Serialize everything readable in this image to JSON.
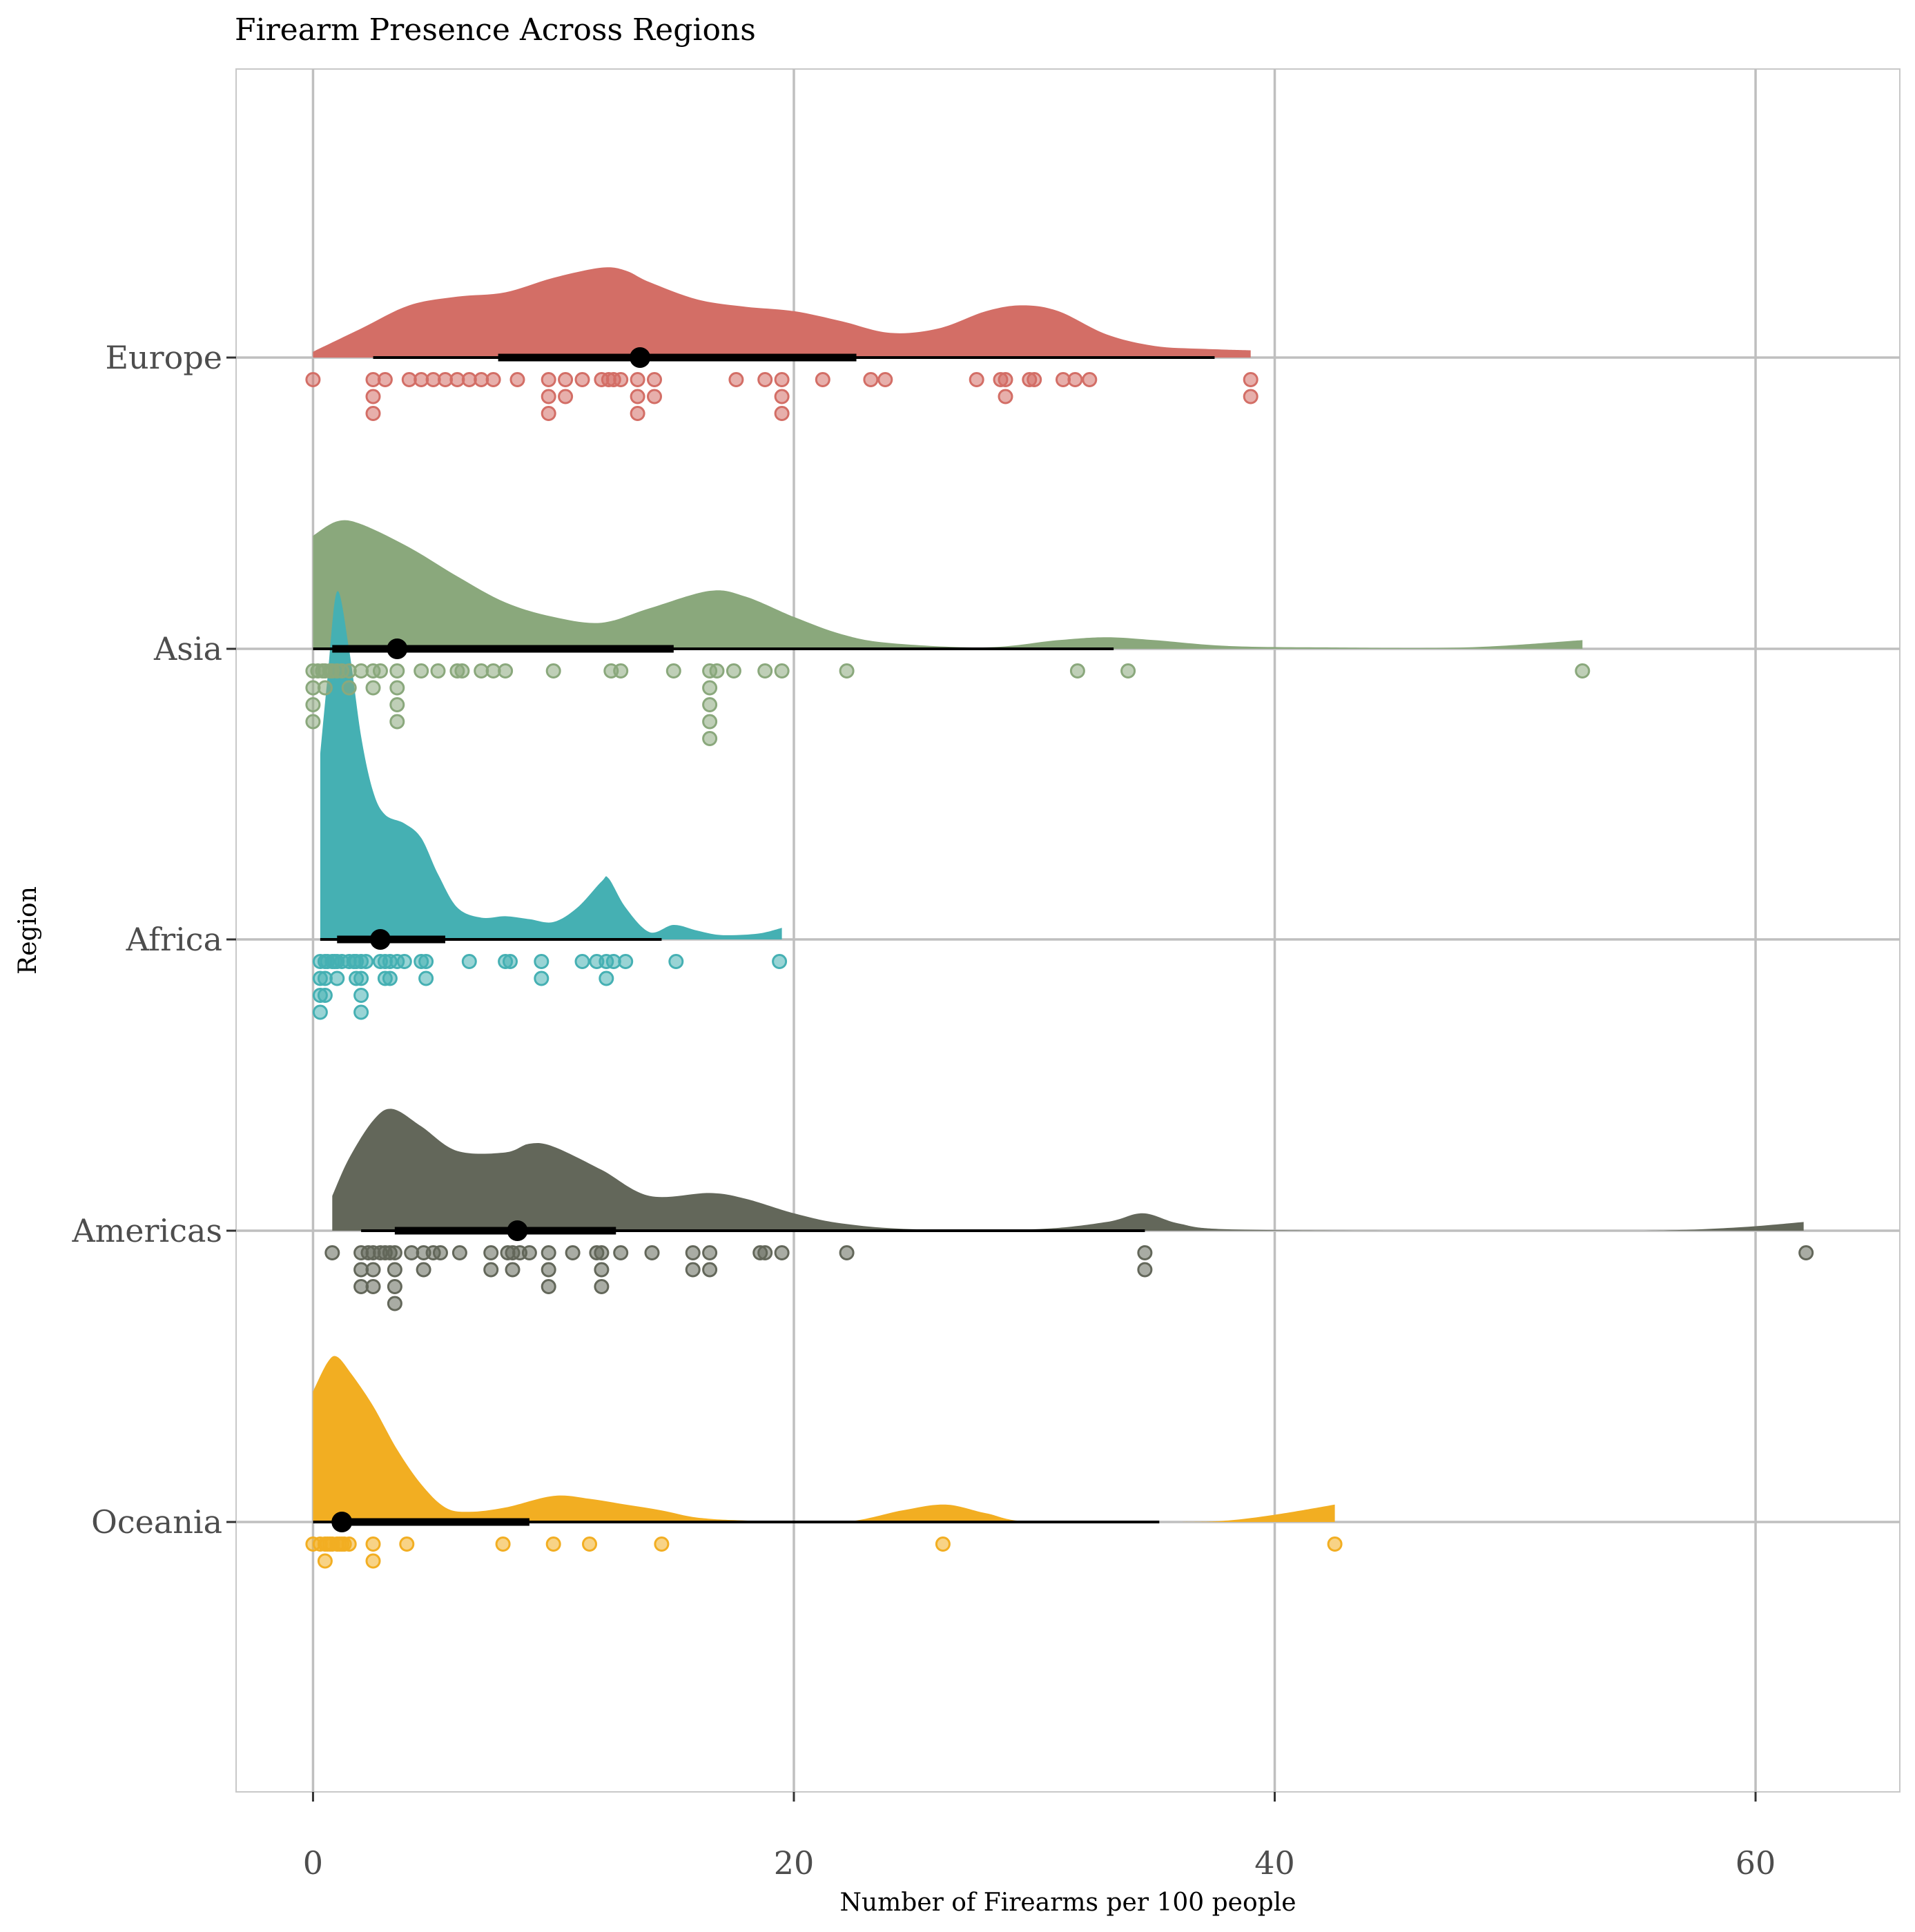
{
  "chart_data": {
    "type": "raincloud",
    "title": "Firearm Presence Across Regions",
    "xlabel": "Number of Firearms per 100 people",
    "ylabel": "Region",
    "xlim": [
      -3.2,
      66
    ],
    "x_ticks": [
      0,
      20,
      40,
      60
    ],
    "x_tick_labels": [
      "0",
      "20",
      "40",
      "60"
    ],
    "grid": true,
    "series": [
      {
        "name": "Europe",
        "color": "#d36e66",
        "points": [
          0,
          2.5,
          2.5,
          2.5,
          3,
          4,
          4.5,
          5,
          5.5,
          6,
          6.5,
          7,
          7.5,
          8.5,
          9.8,
          9.8,
          9.8,
          10.5,
          10.5,
          11.2,
          12,
          12.3,
          12.5,
          12.8,
          13.5,
          13.5,
          13.5,
          14.2,
          14.2,
          17.6,
          18.8,
          19.5,
          19.5,
          19.5,
          21.2,
          23.2,
          23.8,
          27.6,
          28.6,
          28.8,
          28.8,
          29.8,
          30,
          31.2,
          31.7,
          32.3,
          39,
          39
        ],
        "median": 13.6,
        "q1": 7.7,
        "q3": 22.6,
        "whisker": [
          2.5,
          37.5
        ],
        "density": [
          [
            0,
            0.04
          ],
          [
            2,
            0.2
          ],
          [
            4,
            0.36
          ],
          [
            6,
            0.42
          ],
          [
            8,
            0.45
          ],
          [
            10,
            0.55
          ],
          [
            12,
            0.62
          ],
          [
            13,
            0.6
          ],
          [
            14,
            0.52
          ],
          [
            16,
            0.4
          ],
          [
            18,
            0.35
          ],
          [
            20,
            0.32
          ],
          [
            22,
            0.25
          ],
          [
            24,
            0.17
          ],
          [
            26,
            0.2
          ],
          [
            28,
            0.32
          ],
          [
            29.5,
            0.36
          ],
          [
            31,
            0.32
          ],
          [
            33,
            0.16
          ],
          [
            35,
            0.08
          ],
          [
            37,
            0.06
          ],
          [
            39,
            0.05
          ]
        ]
      },
      {
        "name": "Asia",
        "color": "#8aa87c",
        "points": [
          0,
          0,
          0,
          0,
          0.2,
          0.4,
          0.5,
          0.5,
          0.7,
          0.8,
          1,
          1.2,
          1.5,
          1.5,
          2,
          2.5,
          2.5,
          2.8,
          3.5,
          3.5,
          3.5,
          3.5,
          4.5,
          5.2,
          6,
          6.2,
          7,
          7.5,
          8,
          10,
          12.4,
          12.8,
          15,
          16.5,
          16.5,
          16.5,
          16.5,
          16.5,
          16.8,
          17.5,
          18.8,
          19.5,
          22.2,
          31.8,
          33.9,
          52.8
        ],
        "median": 3.5,
        "q1": 0.8,
        "q3": 15.0,
        "whisker": [
          0,
          33.3
        ],
        "density": [
          [
            0,
            0.78
          ],
          [
            1,
            0.88
          ],
          [
            2,
            0.86
          ],
          [
            4,
            0.7
          ],
          [
            6,
            0.5
          ],
          [
            8,
            0.32
          ],
          [
            10,
            0.22
          ],
          [
            12,
            0.18
          ],
          [
            14,
            0.28
          ],
          [
            16.5,
            0.4
          ],
          [
            18,
            0.36
          ],
          [
            20,
            0.22
          ],
          [
            22,
            0.1
          ],
          [
            24,
            0.04
          ],
          [
            28,
            0.01
          ],
          [
            31,
            0.06
          ],
          [
            33,
            0.08
          ],
          [
            35,
            0.06
          ],
          [
            38,
            0.02
          ],
          [
            42,
            0.01
          ],
          [
            48,
            0.01
          ],
          [
            52.8,
            0.06
          ]
        ]
      },
      {
        "name": "Africa",
        "color": "#45b0b3",
        "points": [
          0.3,
          0.3,
          0.3,
          0.3,
          0.5,
          0.5,
          0.5,
          0.6,
          0.8,
          0.9,
          1,
          1,
          1.2,
          1.5,
          1.7,
          1.8,
          1.8,
          2,
          2,
          2,
          2,
          2.2,
          2.8,
          3,
          3,
          3.2,
          3.2,
          3.5,
          3.8,
          4.5,
          4.7,
          4.7,
          6.5,
          8,
          8.2,
          9.5,
          9.5,
          11.2,
          11.8,
          12.2,
          12.2,
          12.5,
          13,
          15.1,
          19.4
        ],
        "median": 2.8,
        "q1": 1.0,
        "q3": 5.5,
        "whisker": [
          0.3,
          14.5
        ],
        "density": [
          [
            0.3,
            1.28
          ],
          [
            0.6,
            1.8
          ],
          [
            1,
            2.4
          ],
          [
            1.5,
            2.0
          ],
          [
            2,
            1.4
          ],
          [
            2.5,
            1.02
          ],
          [
            3,
            0.86
          ],
          [
            3.8,
            0.8
          ],
          [
            4.5,
            0.7
          ],
          [
            5.2,
            0.45
          ],
          [
            6,
            0.22
          ],
          [
            7,
            0.15
          ],
          [
            8,
            0.16
          ],
          [
            9,
            0.14
          ],
          [
            10,
            0.12
          ],
          [
            11,
            0.22
          ],
          [
            12,
            0.4
          ],
          [
            12.3,
            0.42
          ],
          [
            13,
            0.22
          ],
          [
            14,
            0.05
          ],
          [
            15,
            0.1
          ],
          [
            16,
            0.06
          ],
          [
            17,
            0.03
          ],
          [
            18.5,
            0.04
          ],
          [
            19.5,
            0.08
          ]
        ]
      },
      {
        "name": "Americas",
        "color": "#63675a",
        "points": [
          0.8,
          2,
          2,
          2,
          2.3,
          2.5,
          2.5,
          2.5,
          2.8,
          3,
          3.2,
          3.4,
          3.4,
          3.4,
          3.4,
          4.1,
          4.6,
          4.6,
          5,
          5.3,
          6.1,
          7.4,
          7.4,
          8.1,
          8.3,
          8.3,
          8.6,
          9,
          9.8,
          9.8,
          9.8,
          10.8,
          11.8,
          12,
          12,
          12,
          12.8,
          14.1,
          15.8,
          15.8,
          16.5,
          16.5,
          18.6,
          18.8,
          19.5,
          22.2,
          34.6,
          34.6,
          62.1
        ],
        "median": 8.5,
        "q1": 3.4,
        "q3": 12.6,
        "whisker": [
          2,
          34.6
        ],
        "density": [
          [
            0.8,
            0.24
          ],
          [
            1.5,
            0.5
          ],
          [
            2.5,
            0.76
          ],
          [
            3.3,
            0.84
          ],
          [
            4.5,
            0.72
          ],
          [
            6,
            0.55
          ],
          [
            8,
            0.54
          ],
          [
            9,
            0.6
          ],
          [
            10,
            0.58
          ],
          [
            12,
            0.42
          ],
          [
            14,
            0.24
          ],
          [
            16.5,
            0.26
          ],
          [
            18,
            0.22
          ],
          [
            20,
            0.12
          ],
          [
            22,
            0.05
          ],
          [
            25,
            0.01
          ],
          [
            30,
            0.01
          ],
          [
            33,
            0.06
          ],
          [
            34.5,
            0.12
          ],
          [
            36,
            0.05
          ],
          [
            38,
            0.01
          ],
          [
            45,
            0.0
          ],
          [
            55,
            0.0
          ],
          [
            59,
            0.02
          ],
          [
            62,
            0.06
          ]
        ]
      },
      {
        "name": "Oceania",
        "color": "#f2ae22",
        "points": [
          0,
          0.3,
          0.5,
          0.5,
          0.6,
          0.7,
          0.8,
          1,
          1.1,
          1.2,
          1.3,
          1.5,
          2.5,
          2.5,
          3.9,
          7.9,
          10,
          11.5,
          14.5,
          26.2,
          42.5
        ],
        "median": 1.2,
        "q1": 0.8,
        "q3": 9.0,
        "whisker": [
          0,
          35.2
        ],
        "density": [
          [
            0,
            0.9
          ],
          [
            0.6,
            1.1
          ],
          [
            1,
            1.14
          ],
          [
            1.6,
            1.02
          ],
          [
            2.5,
            0.8
          ],
          [
            3.5,
            0.5
          ],
          [
            4.5,
            0.26
          ],
          [
            5.5,
            0.1
          ],
          [
            6.5,
            0.07
          ],
          [
            8,
            0.1
          ],
          [
            10,
            0.18
          ],
          [
            11.5,
            0.16
          ],
          [
            13,
            0.12
          ],
          [
            14.5,
            0.08
          ],
          [
            16,
            0.03
          ],
          [
            18,
            0.01
          ],
          [
            22,
            0.0
          ],
          [
            24.5,
            0.08
          ],
          [
            26.3,
            0.12
          ],
          [
            28,
            0.06
          ],
          [
            30,
            0.0
          ],
          [
            36,
            0.0
          ],
          [
            38,
            0.01
          ],
          [
            40,
            0.05
          ],
          [
            42.5,
            0.12
          ]
        ]
      }
    ]
  }
}
